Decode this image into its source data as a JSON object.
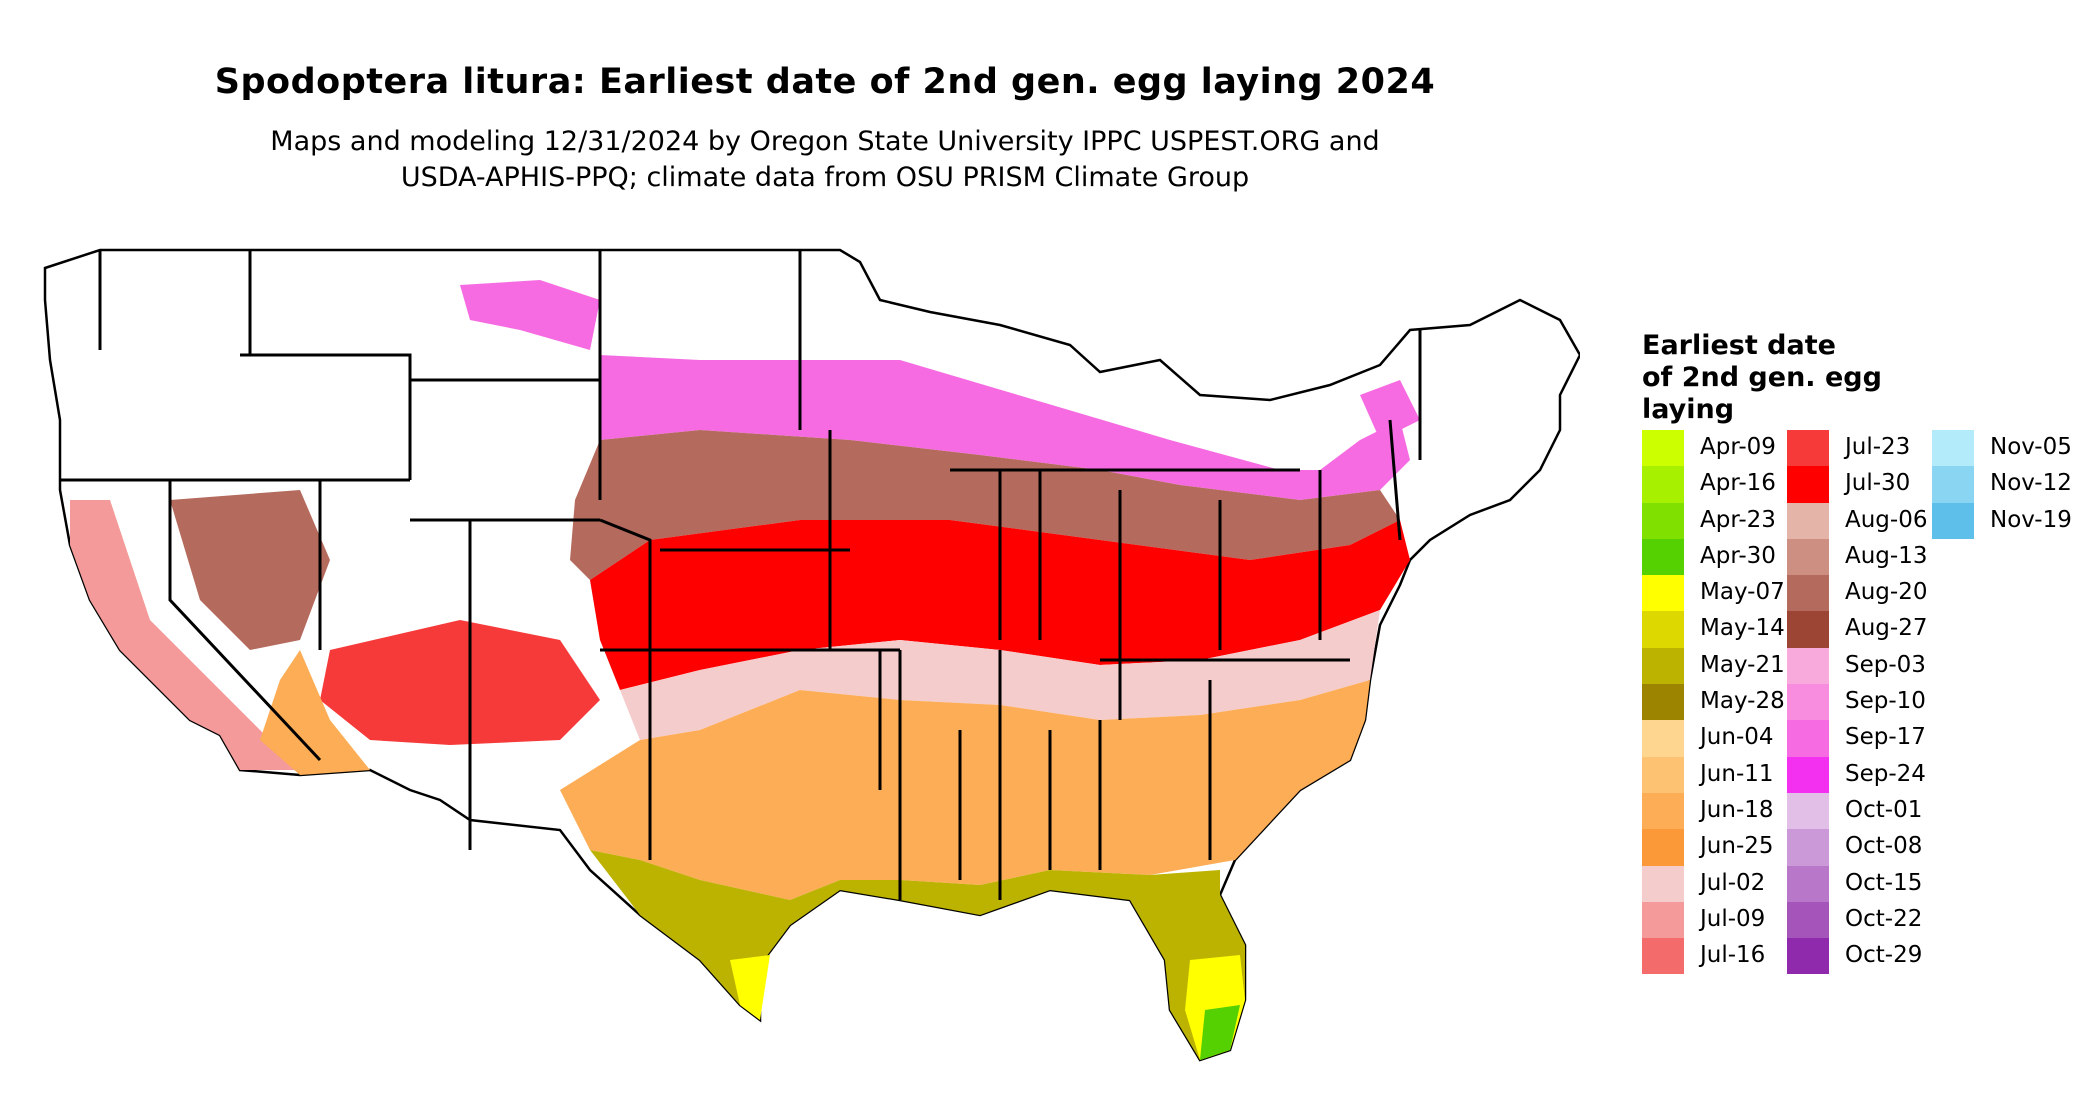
{
  "title": "Spodoptera litura: Earliest date of 2nd gen. egg laying 2024",
  "subtitle_line1": "Maps and modeling 12/31/2024 by Oregon State University IPPC USPEST.ORG and",
  "subtitle_line2": "USDA-APHIS-PPQ; climate data from OSU PRISM Climate Group",
  "legend": {
    "title_lines": [
      "Earliest date",
      "of 2nd gen. egg",
      "laying"
    ],
    "columns": [
      [
        {
          "label": "Apr-09",
          "color": "#ccff00"
        },
        {
          "label": "Apr-16",
          "color": "#a6f000"
        },
        {
          "label": "Apr-23",
          "color": "#80e000"
        },
        {
          "label": "Apr-30",
          "color": "#55d000"
        },
        {
          "label": "May-07",
          "color": "#ffff00"
        },
        {
          "label": "May-14",
          "color": "#dcd800"
        },
        {
          "label": "May-21",
          "color": "#bcb200"
        },
        {
          "label": "May-28",
          "color": "#9c8400"
        },
        {
          "label": "Jun-04",
          "color": "#fed690"
        },
        {
          "label": "Jun-11",
          "color": "#fec273"
        },
        {
          "label": "Jun-18",
          "color": "#fdad55"
        },
        {
          "label": "Jun-25",
          "color": "#fb9938"
        },
        {
          "label": "Jul-02",
          "color": "#f5cccc"
        },
        {
          "label": "Jul-09",
          "color": "#f49a9a"
        },
        {
          "label": "Jul-16",
          "color": "#f46b6b"
        }
      ],
      [
        {
          "label": "Jul-23",
          "color": "#f63a3a"
        },
        {
          "label": "Jul-30",
          "color": "#ff0000"
        },
        {
          "label": "Aug-06",
          "color": "#e5b4a8"
        },
        {
          "label": "Aug-13",
          "color": "#cd8f82"
        },
        {
          "label": "Aug-20",
          "color": "#b46a5c"
        },
        {
          "label": "Aug-27",
          "color": "#9c4535"
        },
        {
          "label": "Sep-03",
          "color": "#f9aadc"
        },
        {
          "label": "Sep-10",
          "color": "#f88cde"
        },
        {
          "label": "Sep-17",
          "color": "#f66be2"
        },
        {
          "label": "Sep-24",
          "color": "#f430f0"
        },
        {
          "label": "Oct-01",
          "color": "#e1bfe6"
        },
        {
          "label": "Oct-08",
          "color": "#cc99d8"
        },
        {
          "label": "Oct-15",
          "color": "#b877c9"
        },
        {
          "label": "Oct-22",
          "color": "#a554ba"
        },
        {
          "label": "Oct-29",
          "color": "#902aac"
        }
      ],
      [
        {
          "label": "Nov-05",
          "color": "#b4ebfa"
        },
        {
          "label": "Nov-12",
          "color": "#8ad6f2"
        },
        {
          "label": "Nov-19",
          "color": "#5ec0ea"
        }
      ]
    ]
  }
}
